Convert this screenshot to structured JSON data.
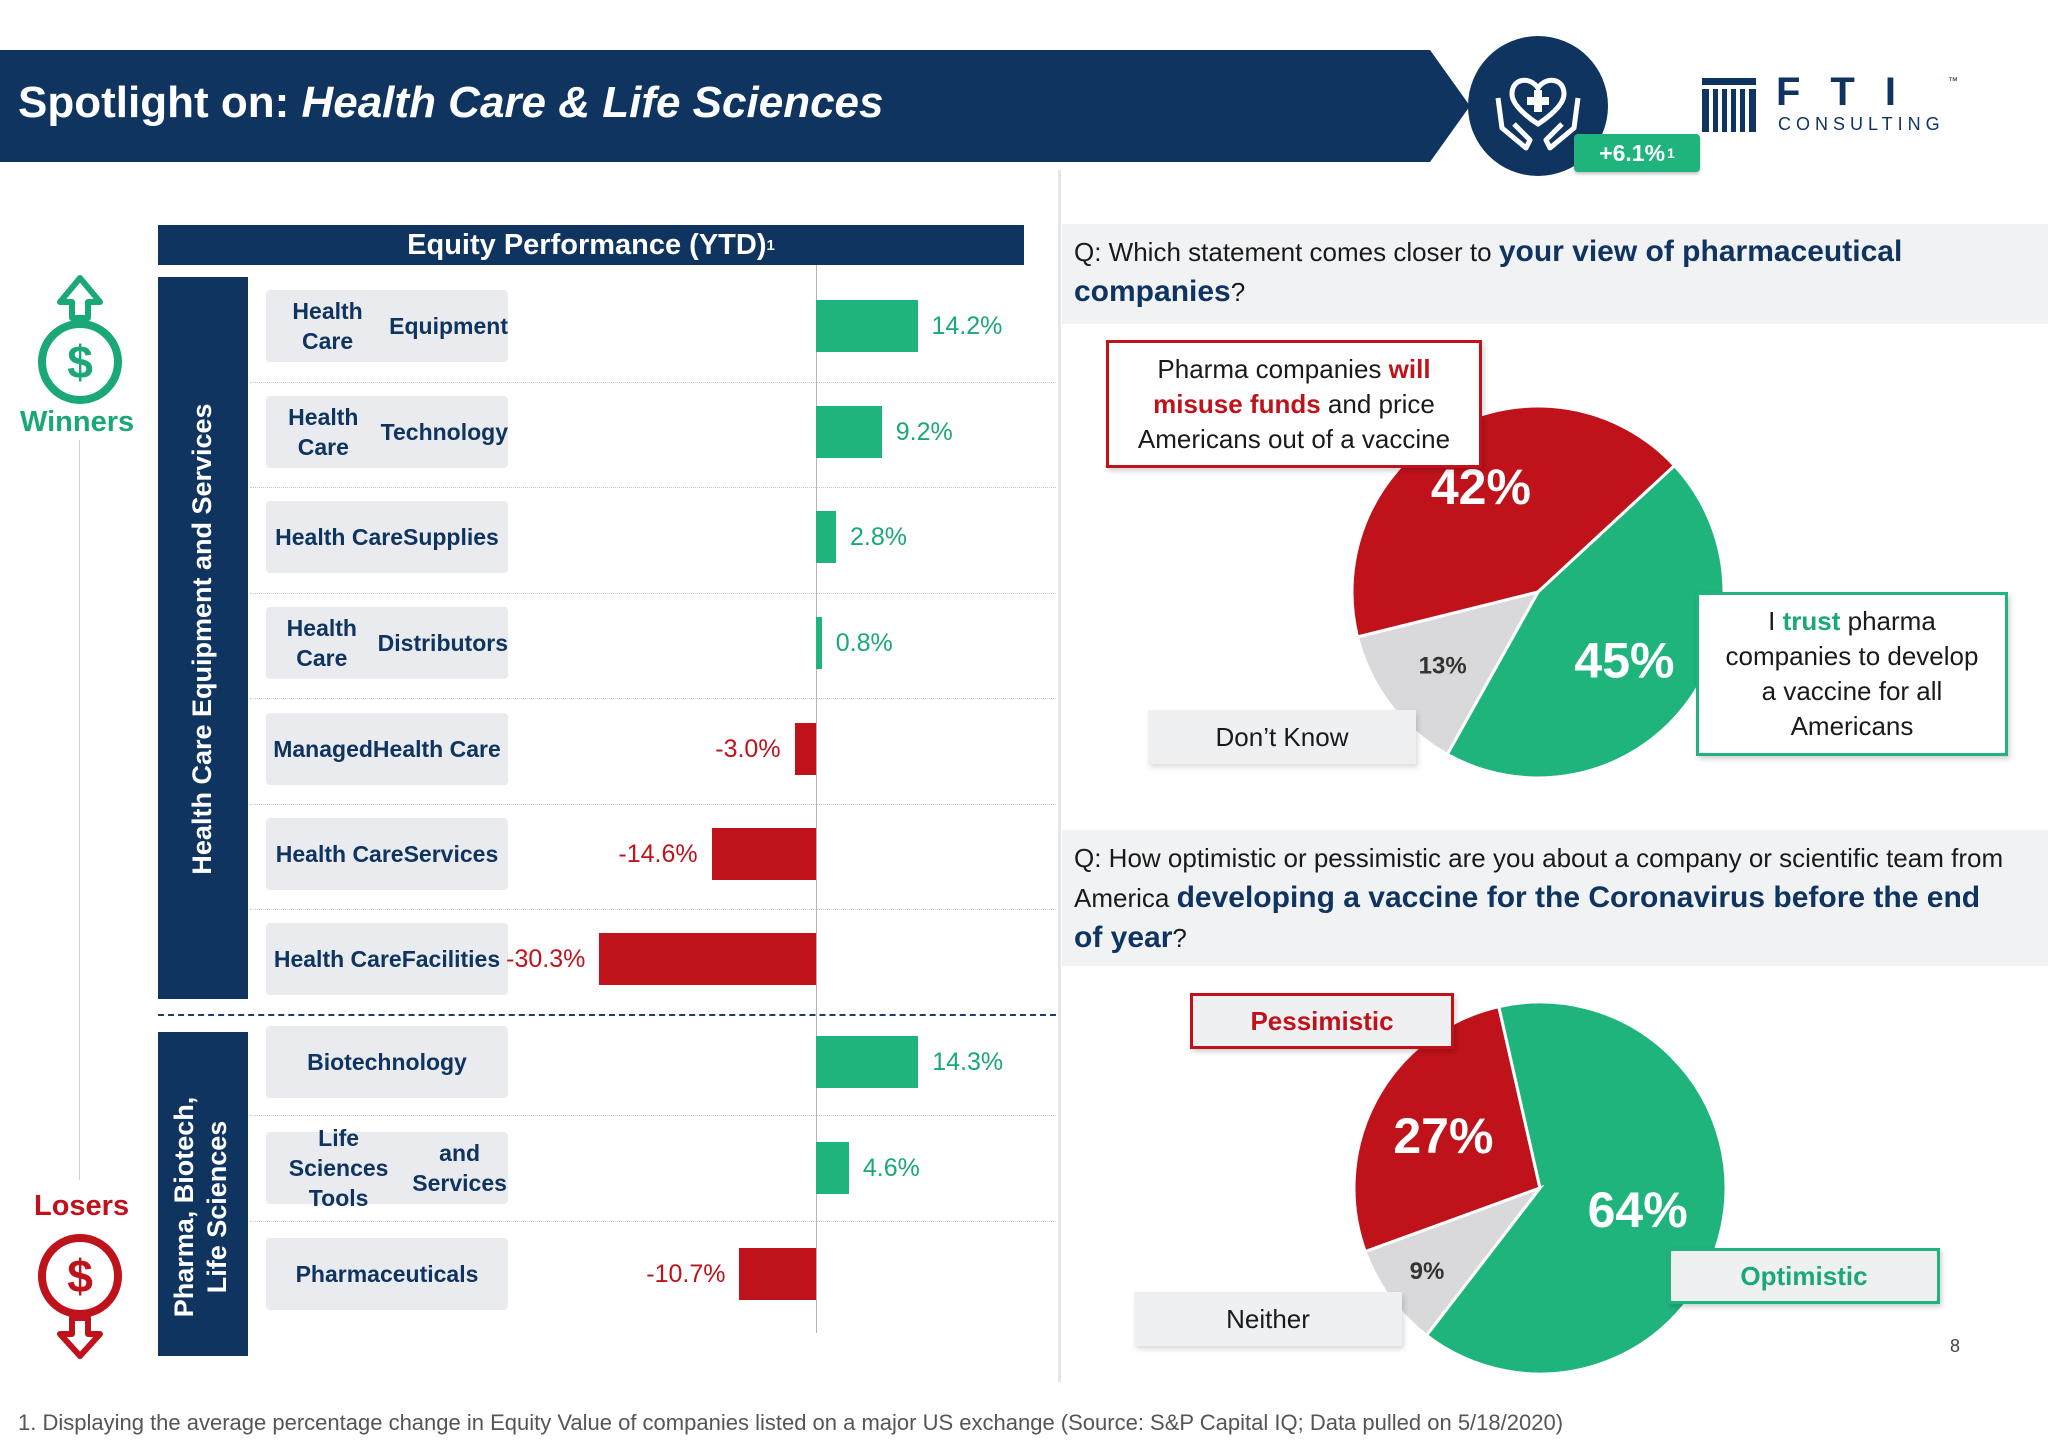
{
  "header": {
    "title_prefix": "Spotlight on: ",
    "title_emphasis": "Health Care & Life Sciences",
    "badge_value": "+6.1%",
    "badge_note": "1",
    "logo_text": "FTI",
    "logo_subtext": "CONSULTING",
    "logo_tm": "™",
    "colors": {
      "navy": "#0f3460",
      "green": "#20b47d",
      "red": "#c0121b"
    },
    "icon": "hands-heart-icon"
  },
  "legend": {
    "winners": "Winners",
    "losers": "Losers",
    "winners_icon": "dollar-arrow-up-icon",
    "losers_icon": "dollar-arrow-down-icon"
  },
  "left_panel": {
    "title": "Equity Performance (YTD)",
    "title_note": "1",
    "group_1": "Health Care Equipment and Services",
    "group_2_line1": "Pharma, Biotech,",
    "group_2_line2": "Life Sciences"
  },
  "chart_data": [
    {
      "type": "bar",
      "orientation": "horizontal",
      "title": "Equity Performance (YTD)",
      "groups": [
        {
          "name": "Health Care Equipment and Services",
          "categories": [
            [
              "Health Care",
              "Equipment"
            ],
            [
              "Health Care",
              "Technology"
            ],
            [
              "Health Care",
              "Supplies"
            ],
            [
              "Health Care",
              "Distributors"
            ],
            [
              "Managed",
              "Health Care"
            ],
            [
              "Health Care",
              "Services"
            ],
            [
              "Health Care",
              "Facilities"
            ]
          ],
          "values": [
            14.2,
            9.2,
            2.8,
            0.8,
            -3.0,
            -14.6,
            -30.3
          ],
          "labels": [
            "14.2%",
            "9.2%",
            "2.8%",
            "0.8%",
            "-3.0%",
            "-14.6%",
            "-30.3%"
          ]
        },
        {
          "name": "Pharma, Biotech, Life Sciences",
          "categories": [
            [
              "Biotechnology"
            ],
            [
              "Life Sciences Tools",
              "and Services"
            ],
            [
              "Pharmaceuticals"
            ]
          ],
          "values": [
            14.3,
            4.6,
            -10.7
          ],
          "labels": [
            "14.3%",
            "4.6%",
            "-10.7%"
          ]
        }
      ],
      "positive_color": "#20b47d",
      "negative_color": "#c0121b"
    },
    {
      "type": "pie",
      "slices": [
        {
          "label": "Pharma companies will misuse funds and price Americans out of a vaccine",
          "value": 42,
          "color": "#c0121b"
        },
        {
          "label": "I trust pharma companies to develop a vaccine for all Americans",
          "value": 45,
          "color": "#20b47d"
        },
        {
          "label": "Don’t Know",
          "value": 13,
          "color": "#d9d9db"
        }
      ]
    },
    {
      "type": "pie",
      "slices": [
        {
          "label": "Pessimistic",
          "value": 27,
          "color": "#c0121b"
        },
        {
          "label": "Optimistic",
          "value": 64,
          "color": "#20b47d"
        },
        {
          "label": "Neither",
          "value": 9,
          "color": "#d9d9db"
        }
      ]
    }
  ],
  "q1": {
    "prefix": "Q: Which statement comes closer to ",
    "emphasis": "your view of pharmaceutical companies",
    "suffix": "?",
    "callout_red_1": "Pharma companies ",
    "callout_red_2": "will",
    "callout_red_3": "misuse funds",
    "callout_red_4": " and price",
    "callout_red_5": "Americans out of a vaccine",
    "callout_green_1": "I ",
    "callout_green_2": "trust",
    "callout_green_3": " pharma",
    "callout_green_4": "companies to develop",
    "callout_green_5": "a vaccine for all",
    "callout_green_6": "Americans",
    "dont_know": "Don’t Know",
    "pct_red": "42%",
    "pct_green": "45%",
    "pct_grey": "13%"
  },
  "q2": {
    "prefix": "Q: How optimistic or pessimistic are you about a company or scientific team from America ",
    "emphasis": "developing a vaccine for the Coronavirus before the end of year",
    "suffix": "?",
    "pessimistic": "Pessimistic",
    "optimistic": "Optimistic",
    "neither": "Neither",
    "pct_red": "27%",
    "pct_green": "64%",
    "pct_grey": "9%"
  },
  "page_number": "8",
  "footnote": "1.    Displaying the average percentage change in Equity Value of companies listed on a major US exchange (Source: S&P Capital IQ; Data pulled on 5/18/2020)"
}
